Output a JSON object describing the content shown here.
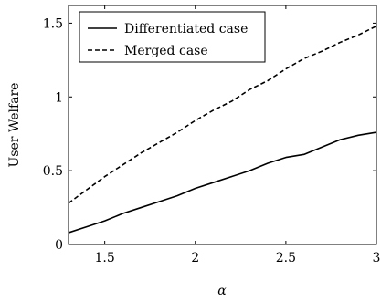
{
  "chart_data": {
    "type": "line",
    "xlabel": "α",
    "ylabel": "User Welfare",
    "xlim": [
      1.3,
      3.0
    ],
    "ylim": [
      0,
      1.62
    ],
    "xticks": [
      1.5,
      2,
      2.5,
      3
    ],
    "xtick_labels": [
      "1.5",
      "2",
      "2.5",
      "3"
    ],
    "yticks": [
      0,
      0.5,
      1,
      1.5
    ],
    "ytick_labels": [
      "0",
      "0.5",
      "1",
      "1.5"
    ],
    "legend_position": "top-left",
    "grid": false,
    "series": [
      {
        "name": "Differentiated case",
        "style": "solid",
        "color": "#000000",
        "x": [
          1.3,
          1.4,
          1.5,
          1.6,
          1.7,
          1.8,
          1.9,
          2.0,
          2.1,
          2.2,
          2.3,
          2.4,
          2.5,
          2.6,
          2.7,
          2.8,
          2.9,
          3.0
        ],
        "y": [
          0.08,
          0.12,
          0.16,
          0.21,
          0.25,
          0.29,
          0.33,
          0.38,
          0.42,
          0.46,
          0.5,
          0.55,
          0.59,
          0.61,
          0.66,
          0.71,
          0.74,
          0.76
        ]
      },
      {
        "name": "Merged case",
        "style": "dashed",
        "color": "#000000",
        "x": [
          1.3,
          1.4,
          1.5,
          1.6,
          1.7,
          1.8,
          1.9,
          2.0,
          2.1,
          2.2,
          2.3,
          2.4,
          2.5,
          2.6,
          2.7,
          2.8,
          2.9,
          3.0
        ],
        "y": [
          0.28,
          0.37,
          0.46,
          0.54,
          0.62,
          0.69,
          0.76,
          0.84,
          0.91,
          0.97,
          1.05,
          1.11,
          1.19,
          1.26,
          1.31,
          1.37,
          1.42,
          1.48
        ]
      }
    ]
  }
}
